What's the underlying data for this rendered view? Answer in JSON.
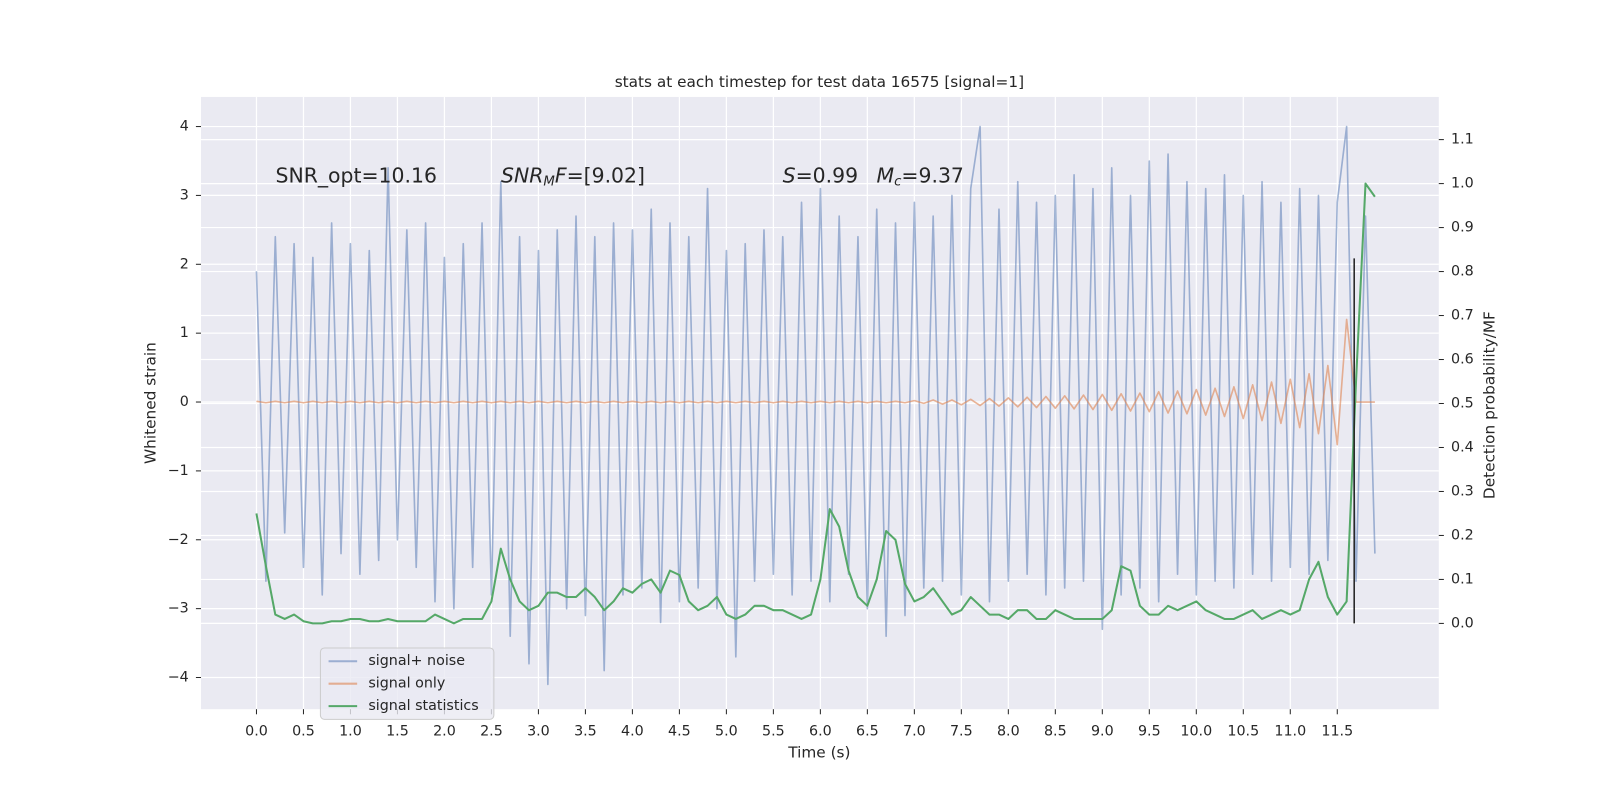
{
  "chart_data": {
    "type": "line",
    "title": "stats at each timestep for test data 16575 [signal=1]",
    "xlabel": "Time (s)",
    "ylabel": "Whitened strain",
    "y2label": "Detection probability/MF",
    "xlim": [
      -0.59,
      12.58
    ],
    "ylim": [
      -4.46,
      4.43
    ],
    "y2lim": [
      -0.195,
      1.197
    ],
    "xticks": [
      {
        "value": 0,
        "label": "0.0"
      },
      0.5,
      {
        "value": 1,
        "label": "1.0"
      },
      1.5,
      {
        "value": 2,
        "label": "2.0"
      },
      2.5,
      {
        "value": 3,
        "label": "3.0"
      },
      3.5,
      {
        "value": 4,
        "label": "4.0"
      },
      4.5,
      {
        "value": 5,
        "label": "5.0"
      },
      5.5,
      {
        "value": 6,
        "label": "6.0"
      },
      6.5,
      {
        "value": 7,
        "label": "7.0"
      },
      7.5,
      {
        "value": 8,
        "label": "8.0"
      },
      8.5,
      {
        "value": 9,
        "label": "9.0"
      },
      9.5,
      {
        "value": 10,
        "label": "10.0"
      },
      10.5,
      {
        "value": 11,
        "label": "11.0"
      },
      11.5
    ],
    "yticks": [
      {
        "value": -4,
        "label": "−4"
      },
      {
        "value": -3,
        "label": "−3"
      },
      {
        "value": -2,
        "label": "−2"
      },
      {
        "value": -1,
        "label": "−1"
      },
      0,
      1,
      2,
      3,
      4
    ],
    "y2ticks": [
      {
        "value": 0,
        "label": "0.0"
      },
      0.1,
      0.2,
      0.3,
      0.4,
      0.5,
      0.6,
      0.7,
      0.8,
      0.9,
      {
        "value": 1,
        "label": "1.0"
      },
      1.1
    ],
    "grid": true,
    "legend": "lower left",
    "x": [
      0,
      0.1,
      0.2,
      0.3,
      0.4,
      0.5,
      0.6,
      0.7,
      0.8,
      0.9,
      1,
      1.1,
      1.2,
      1.3,
      1.4,
      1.5,
      1.6,
      1.7,
      1.8,
      1.9,
      2,
      2.1,
      2.2,
      2.3,
      2.4,
      2.5,
      2.6,
      2.7,
      2.8,
      2.9,
      3,
      3.1,
      3.2,
      3.3,
      3.4,
      3.5,
      3.6,
      3.7,
      3.8,
      3.9,
      4,
      4.1,
      4.2,
      4.3,
      4.4,
      4.5,
      4.6,
      4.7,
      4.8,
      4.9,
      5,
      5.1,
      5.2,
      5.3,
      5.4,
      5.5,
      5.6,
      5.7,
      5.8,
      5.9,
      6,
      6.1,
      6.2,
      6.3,
      6.4,
      6.5,
      6.6,
      6.7,
      6.8,
      6.9,
      7,
      7.1,
      7.2,
      7.3,
      7.4,
      7.5,
      7.6,
      7.7,
      7.8,
      7.9,
      8,
      8.1,
      8.2,
      8.3,
      8.4,
      8.5,
      8.6,
      8.7,
      8.8,
      8.9,
      9,
      9.1,
      9.2,
      9.3,
      9.4,
      9.5,
      9.6,
      9.7,
      9.8,
      9.9,
      10,
      10.1,
      10.2,
      10.3,
      10.4,
      10.5,
      10.6,
      10.7,
      10.8,
      10.9,
      11,
      11.1,
      11.2,
      11.3,
      11.4,
      11.5,
      11.6,
      11.7,
      11.8,
      11.9
    ],
    "series": [
      {
        "name": "signal+ noise",
        "color": "#4c72b0",
        "alpha": 0.5,
        "values": [
          1.9,
          -2.6,
          2.4,
          -1.9,
          2.3,
          -2.4,
          2.1,
          -2.8,
          2.6,
          -2.2,
          2.3,
          -2.5,
          2.2,
          -2.3,
          3.4,
          -2.0,
          2.5,
          -2.4,
          2.6,
          -2.9,
          2.1,
          -3.0,
          2.3,
          -2.4,
          2.6,
          -2.8,
          3.2,
          -3.4,
          2.4,
          -3.8,
          2.2,
          -4.1,
          2.5,
          -3.0,
          2.7,
          -3.1,
          2.4,
          -3.9,
          2.6,
          -2.8,
          2.5,
          -2.7,
          2.8,
          -3.2,
          2.6,
          -2.9,
          2.4,
          -2.7,
          3.1,
          -3.0,
          2.2,
          -3.7,
          2.3,
          -2.6,
          2.5,
          -2.5,
          2.4,
          -2.8,
          2.9,
          -2.6,
          3.1,
          -2.9,
          2.7,
          -2.5,
          2.4,
          -3.0,
          2.8,
          -3.4,
          2.6,
          -3.1,
          2.9,
          -2.7,
          2.7,
          -2.6,
          3.0,
          -2.8,
          3.1,
          4.0,
          -2.9,
          2.8,
          -2.6,
          3.2,
          -2.5,
          2.9,
          -2.8,
          3.0,
          -2.7,
          3.3,
          -2.6,
          3.1,
          -3.3,
          3.4,
          -2.8,
          3.0,
          -2.7,
          3.5,
          -2.9,
          3.6,
          -2.5,
          3.2,
          -2.8,
          3.1,
          -2.6,
          3.3,
          -2.7,
          3.0,
          -2.5,
          3.2,
          -2.6,
          2.9,
          -2.4,
          3.1,
          -2.5,
          3.0,
          -2.3,
          2.9,
          4.0,
          -2.6,
          2.7,
          -2.2
        ]
      },
      {
        "name": "signal only",
        "color": "#dd8452",
        "alpha": 0.6,
        "values": [
          0.01,
          -0.01,
          0.01,
          -0.01,
          0.01,
          -0.01,
          0.01,
          -0.01,
          0.01,
          -0.01,
          0.01,
          -0.01,
          0.01,
          -0.01,
          0.01,
          -0.01,
          0.01,
          -0.01,
          0.01,
          -0.01,
          0.01,
          -0.01,
          0.01,
          -0.01,
          0.01,
          -0.01,
          0.01,
          -0.01,
          0.01,
          -0.01,
          0.01,
          -0.01,
          0.01,
          -0.01,
          0.01,
          -0.01,
          0.01,
          -0.01,
          0.01,
          -0.01,
          0.01,
          -0.01,
          0.01,
          -0.01,
          0.01,
          -0.01,
          0.01,
          -0.01,
          0.01,
          -0.01,
          0.01,
          -0.01,
          0.01,
          -0.01,
          0.01,
          -0.01,
          0.01,
          -0.01,
          0.01,
          -0.01,
          0.01,
          -0.01,
          0.01,
          -0.01,
          0.01,
          -0.01,
          0.01,
          -0.01,
          0.01,
          -0.01,
          0.02,
          -0.02,
          0.03,
          -0.03,
          0.03,
          -0.04,
          0.04,
          -0.05,
          0.05,
          -0.06,
          0.06,
          -0.07,
          0.07,
          -0.08,
          0.08,
          -0.09,
          0.09,
          -0.1,
          0.1,
          -0.11,
          0.11,
          -0.12,
          0.12,
          -0.13,
          0.13,
          -0.14,
          0.15,
          -0.16,
          0.16,
          -0.17,
          0.18,
          -0.19,
          0.2,
          -0.21,
          0.22,
          -0.24,
          0.25,
          -0.27,
          0.29,
          -0.31,
          0.33,
          -0.37,
          0.41,
          -0.46,
          0.53,
          -0.62,
          1.2,
          0,
          0,
          0
        ]
      },
      {
        "name": "signal statistics",
        "color": "#55a868",
        "alpha": 1,
        "axis": "y2",
        "values": [
          0.25,
          0.13,
          0.02,
          0.01,
          0.02,
          0.005,
          0,
          0,
          0.005,
          0.005,
          0.01,
          0.01,
          0.005,
          0.005,
          0.01,
          0.005,
          0.005,
          0.005,
          0.005,
          0.02,
          0.01,
          0,
          0.01,
          0.01,
          0.01,
          0.05,
          0.17,
          0.1,
          0.05,
          0.03,
          0.04,
          0.07,
          0.07,
          0.06,
          0.06,
          0.08,
          0.06,
          0.03,
          0.05,
          0.08,
          0.07,
          0.09,
          0.1,
          0.07,
          0.12,
          0.11,
          0.05,
          0.03,
          0.04,
          0.06,
          0.02,
          0.01,
          0.02,
          0.04,
          0.04,
          0.03,
          0.03,
          0.02,
          0.01,
          0.02,
          0.1,
          0.26,
          0.22,
          0.12,
          0.06,
          0.04,
          0.1,
          0.21,
          0.19,
          0.09,
          0.05,
          0.06,
          0.08,
          0.05,
          0.02,
          0.03,
          0.06,
          0.04,
          0.02,
          0.02,
          0.01,
          0.03,
          0.03,
          0.01,
          0.01,
          0.03,
          0.02,
          0.01,
          0.01,
          0.01,
          0.01,
          0.03,
          0.13,
          0.12,
          0.04,
          0.02,
          0.02,
          0.04,
          0.03,
          0.04,
          0.05,
          0.03,
          0.02,
          0.01,
          0.01,
          0.02,
          0.03,
          0.01,
          0.02,
          0.03,
          0.02,
          0.03,
          0.1,
          0.14,
          0.06,
          0.02,
          0.05,
          0.55,
          1.0,
          0.97
        ]
      }
    ],
    "vline": {
      "x": 11.68,
      "y2": [
        0,
        0.83
      ],
      "color": "#222222"
    },
    "annotations": [
      [
        {
          "text": "SNR_opt=10.16"
        }
      ],
      [
        {
          "text": "SNR",
          "italic": true
        },
        {
          "text": "M",
          "italic": true,
          "sub": true
        },
        {
          "text": "F",
          "italic": true
        },
        {
          "text": "=[9.02]"
        }
      ],
      [
        {
          "text": "S",
          "italic": true
        },
        {
          "text": "=0.99"
        }
      ],
      [
        {
          "text": "M",
          "italic": true
        },
        {
          "text": "c",
          "italic": true,
          "sub": true
        },
        {
          "text": "=9.37"
        }
      ]
    ]
  }
}
